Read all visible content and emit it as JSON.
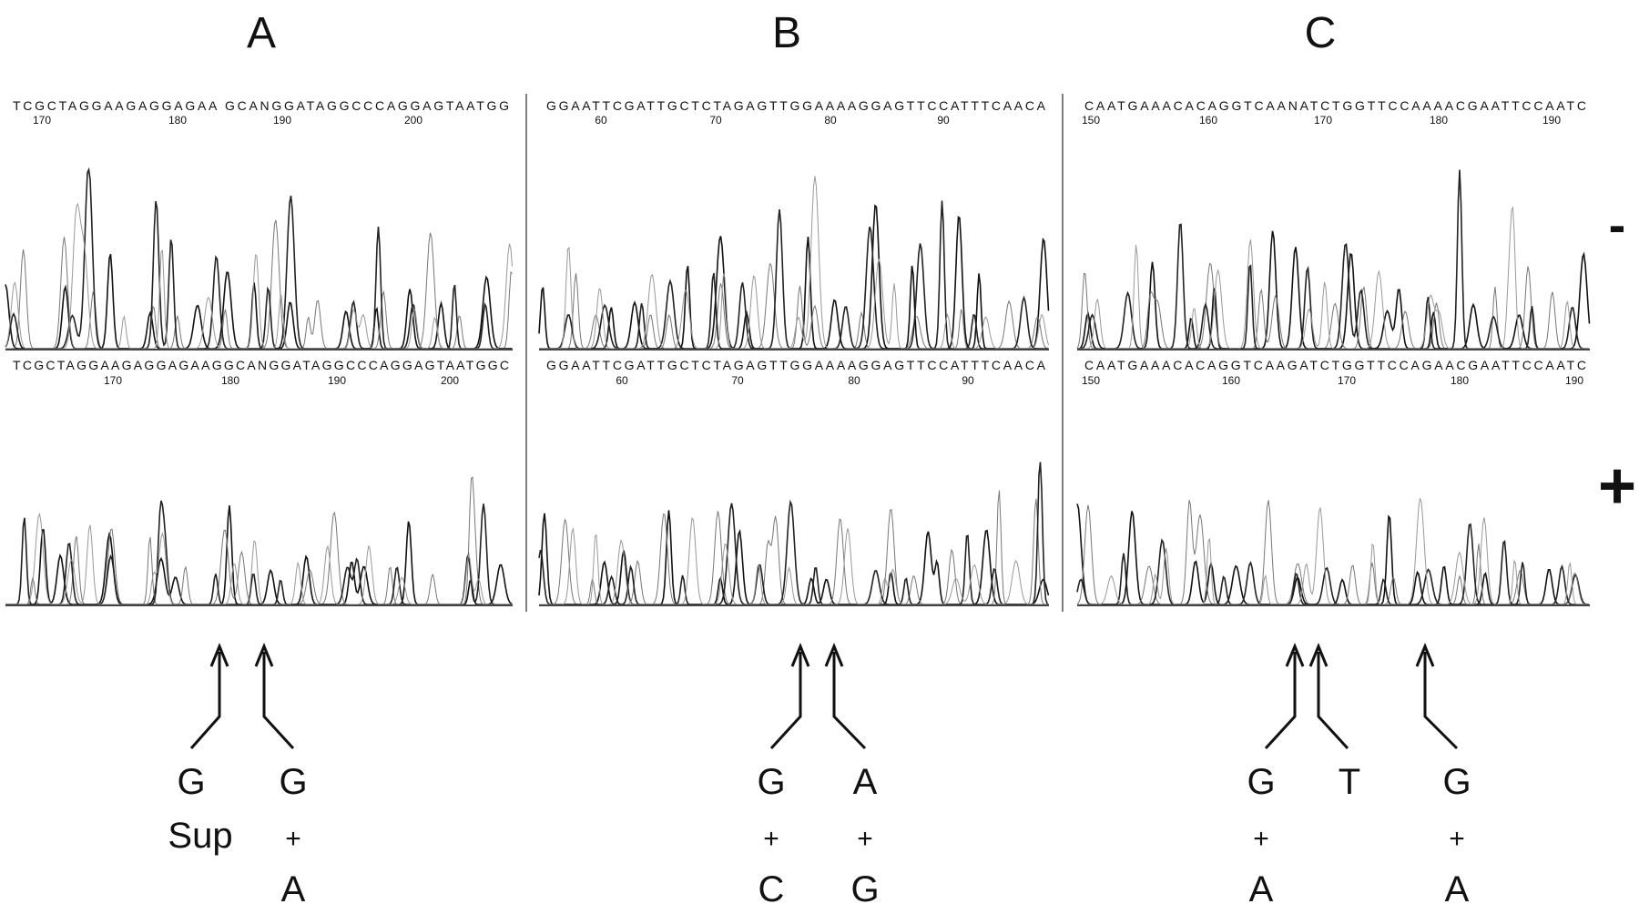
{
  "panels": [
    {
      "label": "A",
      "minus": {
        "sequence": "TCGCTAGGAAGAGGAGAA GCANGGATAGGCCCAGGAGTAATGG",
        "ticks": [
          "170",
          "180",
          "190",
          "200"
        ]
      },
      "plus": {
        "sequence": "TCGCTAGGAAGAGGAGAAGGCANGGATAGGCCCAGGAGTAATGGC",
        "ticks": [
          "170",
          "180",
          "190",
          "200"
        ]
      },
      "annotations": [
        [
          "G",
          "Sup"
        ],
        [
          "G",
          "+",
          "A"
        ]
      ]
    },
    {
      "label": "B",
      "minus": {
        "sequence": "GGAATTCGATTGCTCTAGAGTTGGAAAAGGAGTTCCATTTCAACA",
        "ticks": [
          "60",
          "70",
          "80",
          "90"
        ]
      },
      "plus": {
        "sequence": "GGAATTCGATTGCTCTAGAGTTGGAAAAGGAGTTCCATTTCAACA",
        "ticks": [
          "60",
          "70",
          "80",
          "90"
        ]
      },
      "annotations": [
        [
          "G",
          "+",
          "C"
        ],
        [
          "A",
          "+",
          "G"
        ]
      ]
    },
    {
      "label": "C",
      "minus": {
        "sequence": "CAATGAAACACAGGTCAANATCTGGTTCCAAAACGAATTCCAATC",
        "ticks": [
          "150",
          "160",
          "170",
          "180",
          "190"
        ]
      },
      "plus": {
        "sequence": "CAATGAAACACAGGTCAAGATCTGGTTCCAGAACGAATTCCAATC",
        "ticks": [
          "150",
          "160",
          "170",
          "180",
          "190"
        ]
      },
      "annotations": [
        [
          "G",
          "+",
          "A"
        ],
        [
          "T"
        ],
        [
          "G",
          "+",
          "A"
        ]
      ]
    }
  ],
  "conditions": [
    "-",
    "+"
  ]
}
